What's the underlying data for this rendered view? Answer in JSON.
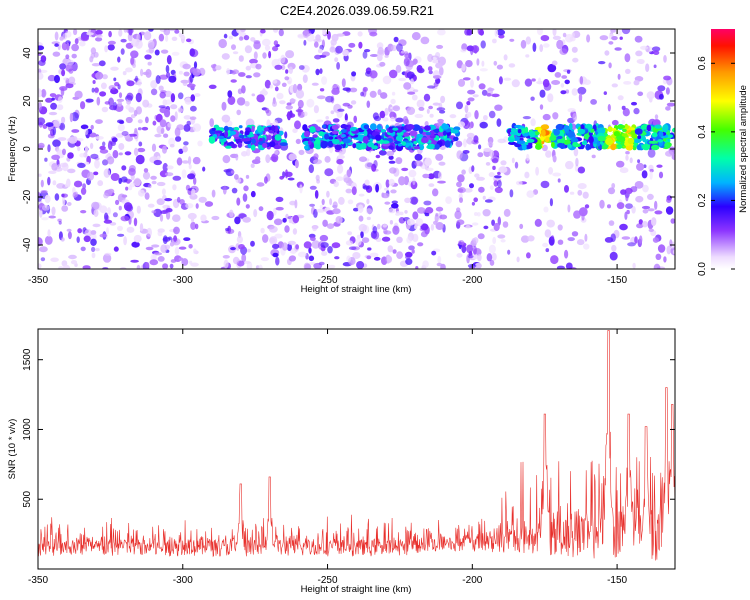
{
  "title": "C2E4.2026.039.06.59.R21",
  "chart_data": [
    {
      "type": "heatmap",
      "xlabel": "Height of straight line (km)",
      "ylabel": "Frequency (Hz)",
      "xlim": [
        -350,
        -130
      ],
      "ylim": [
        -50,
        50
      ],
      "xticks": [
        -350,
        -300,
        -250,
        -200,
        -150
      ],
      "yticks": [
        -40,
        -20,
        0,
        20,
        40
      ],
      "grid": false,
      "colorbar": {
        "label": "Normalized spectral amplitude",
        "range": [
          0,
          0.7
        ],
        "ticks": [
          0.0,
          0.2,
          0.4,
          0.6
        ]
      },
      "signal_band": {
        "frequency": 5,
        "segments": [
          [
            -290,
            -265
          ],
          [
            -258,
            -205
          ],
          [
            -187,
            -130
          ]
        ]
      },
      "peak_regions": [
        {
          "x": -175,
          "y": 6,
          "amplitude": 0.62
        },
        {
          "x": -152,
          "y": 6,
          "amplitude": 0.6
        },
        {
          "x": -146,
          "y": 6,
          "amplitude": 0.58
        }
      ],
      "noise_gaps": [
        [
          -295,
          -286
        ],
        [
          -210,
          -205
        ],
        [
          -160,
          -153
        ]
      ]
    },
    {
      "type": "line",
      "xlabel": "Height of straight line (km)",
      "ylabel": "SNR (10 * v/v)",
      "xlim": [
        -350,
        -130
      ],
      "ylim": [
        0,
        1720
      ],
      "xticks": [
        -350,
        -300,
        -250,
        -200,
        -150
      ],
      "yticks": [
        500,
        1000,
        1500
      ],
      "grid": false,
      "color": "#e8302c",
      "baseline": 150,
      "peaks": [
        {
          "x": -270,
          "y": 660
        },
        {
          "x": -280,
          "y": 610
        },
        {
          "x": -175,
          "y": 1110
        },
        {
          "x": -153,
          "y": 1710
        },
        {
          "x": -146,
          "y": 1110
        },
        {
          "x": -140,
          "y": 1020
        },
        {
          "x": -133,
          "y": 1300
        },
        {
          "x": -131,
          "y": 1180
        }
      ]
    }
  ]
}
